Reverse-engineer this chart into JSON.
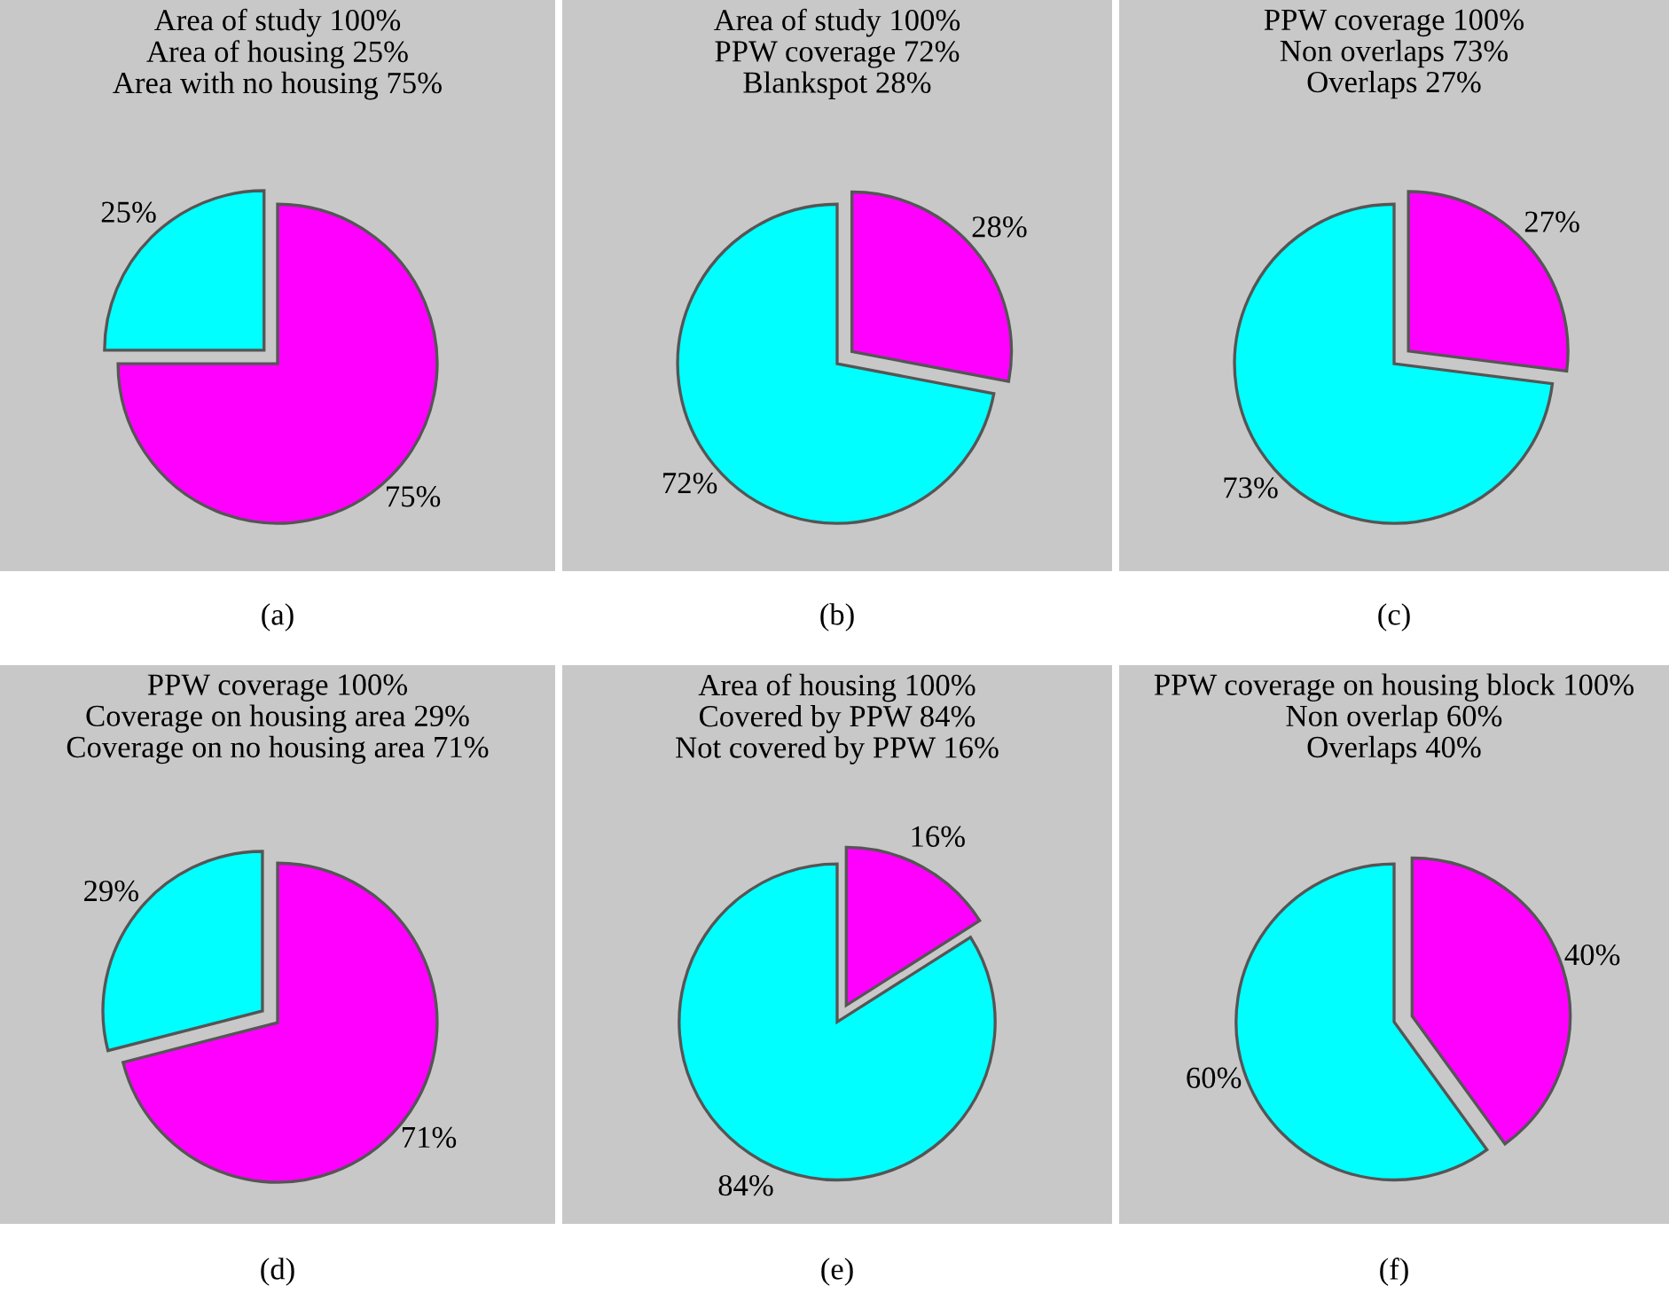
{
  "chart_data": [
    {
      "type": "pie",
      "title": "Area of study 100%\nArea of housing 25%\nArea with no housing 75%",
      "categories": [
        null,
        null
      ],
      "values": [
        75,
        25
      ],
      "value_labels": [
        "75%",
        "25%"
      ],
      "colors": [
        "#ff00ff",
        "#00ffff"
      ],
      "annotations": [
        "(a)"
      ]
    },
    {
      "type": "pie",
      "title": "Area of study 100%\nPPW coverage 72%\nBlankspot 28%",
      "categories": [
        null,
        null
      ],
      "values": [
        28,
        72
      ],
      "value_labels": [
        "28%",
        "72%"
      ],
      "colors": [
        "#ff00ff",
        "#00ffff"
      ],
      "annotations": [
        "(b)"
      ]
    },
    {
      "type": "pie",
      "title": "PPW coverage 100%\nNon overlaps 73%\nOverlaps 27%",
      "categories": [
        null,
        null
      ],
      "values": [
        27,
        73
      ],
      "value_labels": [
        "27%",
        "73%"
      ],
      "colors": [
        "#ff00ff",
        "#00ffff"
      ],
      "annotations": [
        "(c)"
      ]
    },
    {
      "type": "pie",
      "title": "PPW coverage 100%\nCoverage on housing area 29%\nCoverage on no housing area 71%",
      "categories": [
        null,
        null
      ],
      "values": [
        71,
        29
      ],
      "value_labels": [
        "71%",
        "29%"
      ],
      "colors": [
        "#ff00ff",
        "#00ffff"
      ],
      "annotations": [
        "(d)"
      ]
    },
    {
      "type": "pie",
      "title": "Area of housing 100%\nCovered by PPW 84%\nNot covered by PPW 16%",
      "categories": [
        null,
        null
      ],
      "values": [
        16,
        84
      ],
      "value_labels": [
        "16%",
        "84%"
      ],
      "colors": [
        "#ff00ff",
        "#00ffff"
      ],
      "annotations": [
        "(e)"
      ]
    },
    {
      "type": "pie",
      "title": "PPW coverage on housing block 100%\nNon overlap 60%\nOverlaps 40%",
      "categories": [
        null,
        null
      ],
      "values": [
        40,
        60
      ],
      "value_labels": [
        "40%",
        "60%"
      ],
      "colors": [
        "#ff00ff",
        "#00ffff"
      ],
      "annotations": [
        "(f)"
      ]
    }
  ]
}
